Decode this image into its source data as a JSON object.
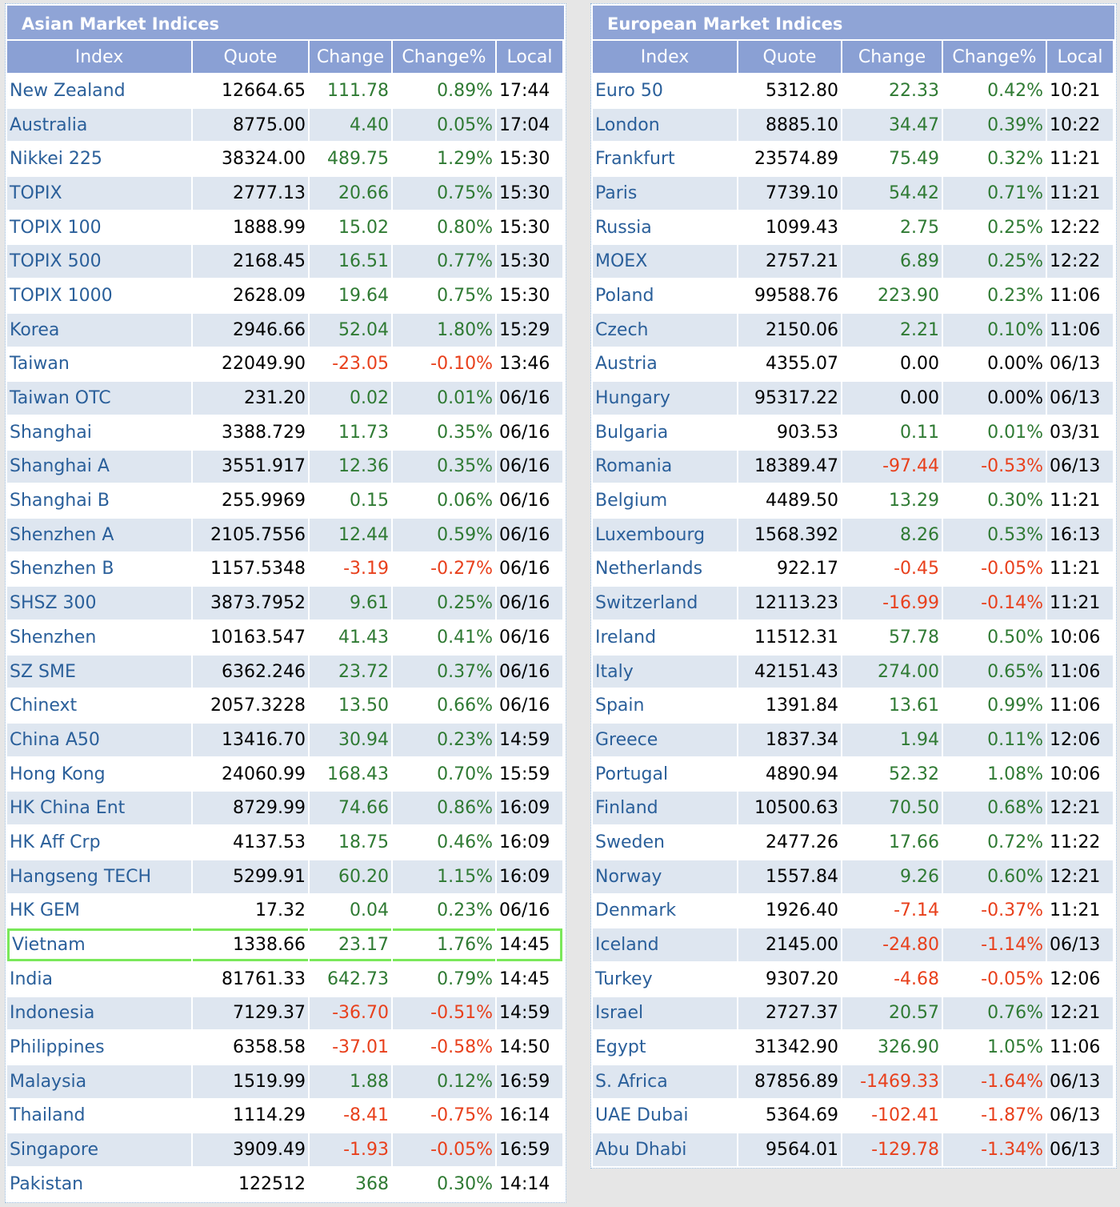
{
  "colors": {
    "up": "#2f7a33",
    "down": "#e8401c",
    "flat": "#000000"
  },
  "tables": [
    {
      "title": "Asian Market Indices",
      "headers": [
        "Index",
        "Quote",
        "Change",
        "Change%",
        "Local"
      ],
      "highlighted_row": 25,
      "rows": [
        [
          "New Zealand",
          "12664.65",
          "111.78",
          "0.89%",
          "17:44"
        ],
        [
          "Australia",
          "8775.00",
          "4.40",
          "0.05%",
          "17:04"
        ],
        [
          "Nikkei 225",
          "38324.00",
          "489.75",
          "1.29%",
          "15:30"
        ],
        [
          "TOPIX",
          "2777.13",
          "20.66",
          "0.75%",
          "15:30"
        ],
        [
          "TOPIX 100",
          "1888.99",
          "15.02",
          "0.80%",
          "15:30"
        ],
        [
          "TOPIX 500",
          "2168.45",
          "16.51",
          "0.77%",
          "15:30"
        ],
        [
          "TOPIX 1000",
          "2628.09",
          "19.64",
          "0.75%",
          "15:30"
        ],
        [
          "Korea",
          "2946.66",
          "52.04",
          "1.80%",
          "15:29"
        ],
        [
          "Taiwan",
          "22049.90",
          "-23.05",
          "-0.10%",
          "13:46"
        ],
        [
          "Taiwan OTC",
          "231.20",
          "0.02",
          "0.01%",
          "06/16"
        ],
        [
          "Shanghai",
          "3388.729",
          "11.73",
          "0.35%",
          "06/16"
        ],
        [
          "Shanghai A",
          "3551.917",
          "12.36",
          "0.35%",
          "06/16"
        ],
        [
          "Shanghai B",
          "255.9969",
          "0.15",
          "0.06%",
          "06/16"
        ],
        [
          "Shenzhen A",
          "2105.7556",
          "12.44",
          "0.59%",
          "06/16"
        ],
        [
          "Shenzhen B",
          "1157.5348",
          "-3.19",
          "-0.27%",
          "06/16"
        ],
        [
          "SHSZ 300",
          "3873.7952",
          "9.61",
          "0.25%",
          "06/16"
        ],
        [
          "Shenzhen",
          "10163.547",
          "41.43",
          "0.41%",
          "06/16"
        ],
        [
          "SZ SME",
          "6362.246",
          "23.72",
          "0.37%",
          "06/16"
        ],
        [
          "Chinext",
          "2057.3228",
          "13.50",
          "0.66%",
          "06/16"
        ],
        [
          "China A50",
          "13416.70",
          "30.94",
          "0.23%",
          "14:59"
        ],
        [
          "Hong Kong",
          "24060.99",
          "168.43",
          "0.70%",
          "15:59"
        ],
        [
          "HK China Ent",
          "8729.99",
          "74.66",
          "0.86%",
          "16:09"
        ],
        [
          "HK Aff Crp",
          "4137.53",
          "18.75",
          "0.46%",
          "16:09"
        ],
        [
          "Hangseng TECH",
          "5299.91",
          "60.20",
          "1.15%",
          "16:09"
        ],
        [
          "HK GEM",
          "17.32",
          "0.04",
          "0.23%",
          "06/16"
        ],
        [
          "Vietnam",
          "1338.66",
          "23.17",
          "1.76%",
          "14:45"
        ],
        [
          "India",
          "81761.33",
          "642.73",
          "0.79%",
          "14:45"
        ],
        [
          "Indonesia",
          "7129.37",
          "-36.70",
          "-0.51%",
          "14:59"
        ],
        [
          "Philippines",
          "6358.58",
          "-37.01",
          "-0.58%",
          "14:50"
        ],
        [
          "Malaysia",
          "1519.99",
          "1.88",
          "0.12%",
          "16:59"
        ],
        [
          "Thailand",
          "1114.29",
          "-8.41",
          "-0.75%",
          "16:14"
        ],
        [
          "Singapore",
          "3909.49",
          "-1.93",
          "-0.05%",
          "16:59"
        ],
        [
          "Pakistan",
          "122512",
          "368",
          "0.30%",
          "14:14"
        ]
      ]
    },
    {
      "title": "European Market Indices",
      "headers": [
        "Index",
        "Quote",
        "Change",
        "Change%",
        "Local"
      ],
      "rows": [
        [
          "Euro 50",
          "5312.80",
          "22.33",
          "0.42%",
          "10:21"
        ],
        [
          "London",
          "8885.10",
          "34.47",
          "0.39%",
          "10:22"
        ],
        [
          "Frankfurt",
          "23574.89",
          "75.49",
          "0.32%",
          "11:21"
        ],
        [
          "Paris",
          "7739.10",
          "54.42",
          "0.71%",
          "11:21"
        ],
        [
          "Russia",
          "1099.43",
          "2.75",
          "0.25%",
          "12:22"
        ],
        [
          "MOEX",
          "2757.21",
          "6.89",
          "0.25%",
          "12:22"
        ],
        [
          "Poland",
          "99588.76",
          "223.90",
          "0.23%",
          "11:06"
        ],
        [
          "Czech",
          "2150.06",
          "2.21",
          "0.10%",
          "11:06"
        ],
        [
          "Austria",
          "4355.07",
          "0.00",
          "0.00%",
          "06/13"
        ],
        [
          "Hungary",
          "95317.22",
          "0.00",
          "0.00%",
          "06/13"
        ],
        [
          "Bulgaria",
          "903.53",
          "0.11",
          "0.01%",
          "03/31"
        ],
        [
          "Romania",
          "18389.47",
          "-97.44",
          "-0.53%",
          "06/13"
        ],
        [
          "Belgium",
          "4489.50",
          "13.29",
          "0.30%",
          "11:21"
        ],
        [
          "Luxembourg",
          "1568.392",
          "8.26",
          "0.53%",
          "16:13"
        ],
        [
          "Netherlands",
          "922.17",
          "-0.45",
          "-0.05%",
          "11:21"
        ],
        [
          "Switzerland",
          "12113.23",
          "-16.99",
          "-0.14%",
          "11:21"
        ],
        [
          "Ireland",
          "11512.31",
          "57.78",
          "0.50%",
          "10:06"
        ],
        [
          "Italy",
          "42151.43",
          "274.00",
          "0.65%",
          "11:06"
        ],
        [
          "Spain",
          "1391.84",
          "13.61",
          "0.99%",
          "11:06"
        ],
        [
          "Greece",
          "1837.34",
          "1.94",
          "0.11%",
          "12:06"
        ],
        [
          "Portugal",
          "4890.94",
          "52.32",
          "1.08%",
          "10:06"
        ],
        [
          "Finland",
          "10500.63",
          "70.50",
          "0.68%",
          "12:21"
        ],
        [
          "Sweden",
          "2477.26",
          "17.66",
          "0.72%",
          "11:22"
        ],
        [
          "Norway",
          "1557.84",
          "9.26",
          "0.60%",
          "12:21"
        ],
        [
          "Denmark",
          "1926.40",
          "-7.14",
          "-0.37%",
          "11:21"
        ],
        [
          "Iceland",
          "2145.00",
          "-24.80",
          "-1.14%",
          "06/13"
        ],
        [
          "Turkey",
          "9307.20",
          "-4.68",
          "-0.05%",
          "12:06"
        ],
        [
          "Israel",
          "2727.37",
          "20.57",
          "0.76%",
          "12:21"
        ],
        [
          "Egypt",
          "31342.90",
          "326.90",
          "1.05%",
          "11:06"
        ],
        [
          "S. Africa",
          "87856.89",
          "-1469.33",
          "-1.64%",
          "06/13"
        ],
        [
          "UAE Dubai",
          "5364.69",
          "-102.41",
          "-1.87%",
          "06/13"
        ],
        [
          "Abu Dhabi",
          "9564.01",
          "-129.78",
          "-1.34%",
          "06/13"
        ]
      ]
    }
  ]
}
